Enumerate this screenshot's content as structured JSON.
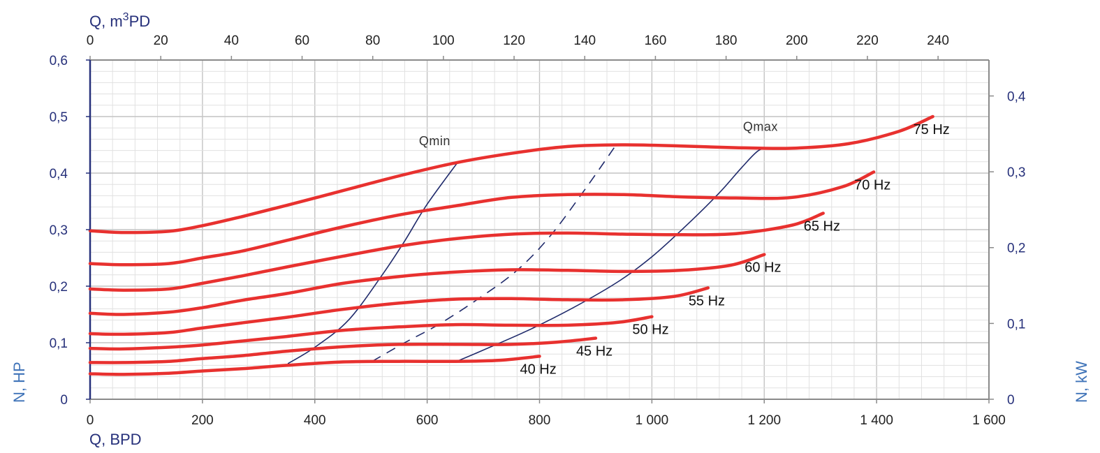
{
  "chart_data": {
    "type": "line",
    "title": "",
    "axes": {
      "x_bottom": {
        "label": "Q, BPD",
        "range": [
          0,
          1600
        ],
        "ticks": [
          0,
          200,
          400,
          600,
          800,
          1000,
          1200,
          1400,
          1600
        ],
        "tick_labels": [
          "0",
          "200",
          "400",
          "600",
          "800",
          "1 000",
          "1 200",
          "1 400",
          "1 600"
        ]
      },
      "x_top": {
        "label_prefix": "Q, m",
        "label_sup": "3",
        "label_suffix": "PD",
        "range": [
          0,
          254.4
        ],
        "ticks": [
          0,
          20,
          40,
          60,
          80,
          100,
          120,
          140,
          160,
          180,
          200,
          220,
          240
        ],
        "tick_labels": [
          "0",
          "20",
          "40",
          "60",
          "80",
          "100",
          "120",
          "140",
          "160",
          "180",
          "200",
          "220",
          "240"
        ]
      },
      "y_left": {
        "label": "N, HP",
        "range": [
          0,
          0.6
        ],
        "ticks": [
          0,
          0.1,
          0.2,
          0.3,
          0.4,
          0.5,
          0.6
        ],
        "tick_labels": [
          "0",
          "0,1",
          "0,2",
          "0,3",
          "0,4",
          "0,5",
          "0,6"
        ]
      },
      "y_right": {
        "label": "N, kW",
        "range": [
          0,
          0.4474
        ],
        "ticks": [
          0,
          0.1,
          0.2,
          0.3,
          0.4
        ],
        "tick_labels": [
          "0",
          "0,1",
          "0,2",
          "0,3",
          "0,4"
        ]
      }
    },
    "grid": true,
    "colors": {
      "series": "#e8312f",
      "boundary": "#1f2a6b",
      "axis_text": "#26307a",
      "axis_title": "#3f73b8",
      "grid": "#d0d0d0",
      "frame": "#8a8a8a"
    },
    "series": [
      {
        "name": "40 Hz",
        "x": [
          0,
          60,
          140,
          200,
          270,
          350,
          450,
          550,
          650,
          730,
          800
        ],
        "y": [
          0.045,
          0.044,
          0.046,
          0.05,
          0.054,
          0.06,
          0.066,
          0.067,
          0.067,
          0.069,
          0.076
        ]
      },
      {
        "name": "45 Hz",
        "x": [
          0,
          60,
          140,
          200,
          270,
          350,
          450,
          550,
          660,
          750,
          830,
          900
        ],
        "y": [
          0.065,
          0.065,
          0.067,
          0.072,
          0.077,
          0.085,
          0.093,
          0.097,
          0.097,
          0.097,
          0.101,
          0.108
        ]
      },
      {
        "name": "50 Hz",
        "x": [
          0,
          60,
          140,
          200,
          270,
          350,
          450,
          550,
          650,
          750,
          850,
          940,
          1000
        ],
        "y": [
          0.09,
          0.089,
          0.092,
          0.096,
          0.103,
          0.111,
          0.122,
          0.128,
          0.132,
          0.131,
          0.131,
          0.136,
          0.146
        ]
      },
      {
        "name": "55 Hz",
        "x": [
          0,
          60,
          140,
          200,
          270,
          350,
          450,
          550,
          650,
          750,
          850,
          950,
          1040,
          1100
        ],
        "y": [
          0.116,
          0.115,
          0.118,
          0.126,
          0.135,
          0.145,
          0.159,
          0.17,
          0.177,
          0.178,
          0.176,
          0.176,
          0.182,
          0.197
        ]
      },
      {
        "name": "60 Hz",
        "x": [
          0,
          60,
          140,
          200,
          270,
          350,
          450,
          550,
          650,
          750,
          850,
          950,
          1050,
          1140,
          1200
        ],
        "y": [
          0.152,
          0.15,
          0.154,
          0.162,
          0.175,
          0.187,
          0.205,
          0.217,
          0.225,
          0.229,
          0.228,
          0.226,
          0.228,
          0.237,
          0.256
        ]
      },
      {
        "name": "65 Hz",
        "x": [
          0,
          60,
          140,
          200,
          270,
          350,
          450,
          550,
          650,
          750,
          850,
          950,
          1050,
          1150,
          1250,
          1305
        ],
        "y": [
          0.195,
          0.193,
          0.195,
          0.205,
          0.218,
          0.234,
          0.253,
          0.271,
          0.284,
          0.292,
          0.294,
          0.292,
          0.291,
          0.293,
          0.308,
          0.329
        ]
      },
      {
        "name": "70 Hz",
        "x": [
          0,
          60,
          140,
          200,
          270,
          350,
          450,
          550,
          650,
          750,
          850,
          950,
          1050,
          1150,
          1250,
          1340,
          1395
        ],
        "y": [
          0.24,
          0.238,
          0.24,
          0.25,
          0.262,
          0.281,
          0.305,
          0.326,
          0.342,
          0.357,
          0.362,
          0.362,
          0.358,
          0.356,
          0.357,
          0.376,
          0.402
        ]
      },
      {
        "name": "75 Hz",
        "x": [
          0,
          60,
          140,
          200,
          270,
          350,
          450,
          550,
          650,
          750,
          850,
          950,
          1050,
          1150,
          1250,
          1350,
          1440,
          1500
        ],
        "y": [
          0.298,
          0.295,
          0.297,
          0.307,
          0.323,
          0.343,
          0.369,
          0.395,
          0.418,
          0.435,
          0.447,
          0.45,
          0.448,
          0.445,
          0.444,
          0.452,
          0.474,
          0.5
        ]
      }
    ],
    "boundaries": [
      {
        "name": "Qmin",
        "style": "solid",
        "x": [
          352,
          400,
          460,
          520,
          560,
          600,
          655
        ],
        "y": [
          0.063,
          0.092,
          0.14,
          0.22,
          0.28,
          0.345,
          0.42
        ]
      },
      {
        "name": "",
        "style": "dashed",
        "x": [
          502,
          560,
          620,
          690,
          760,
          820,
          880,
          935
        ],
        "y": [
          0.067,
          0.1,
          0.132,
          0.177,
          0.228,
          0.29,
          0.37,
          0.448
        ]
      },
      {
        "name": "Qmax",
        "style": "solid",
        "x": [
          655,
          700,
          780,
          860,
          940,
          1000,
          1060,
          1120,
          1160,
          1190,
          1212
        ],
        "y": [
          0.068,
          0.087,
          0.122,
          0.162,
          0.208,
          0.252,
          0.306,
          0.365,
          0.41,
          0.44,
          0.445
        ]
      }
    ]
  }
}
